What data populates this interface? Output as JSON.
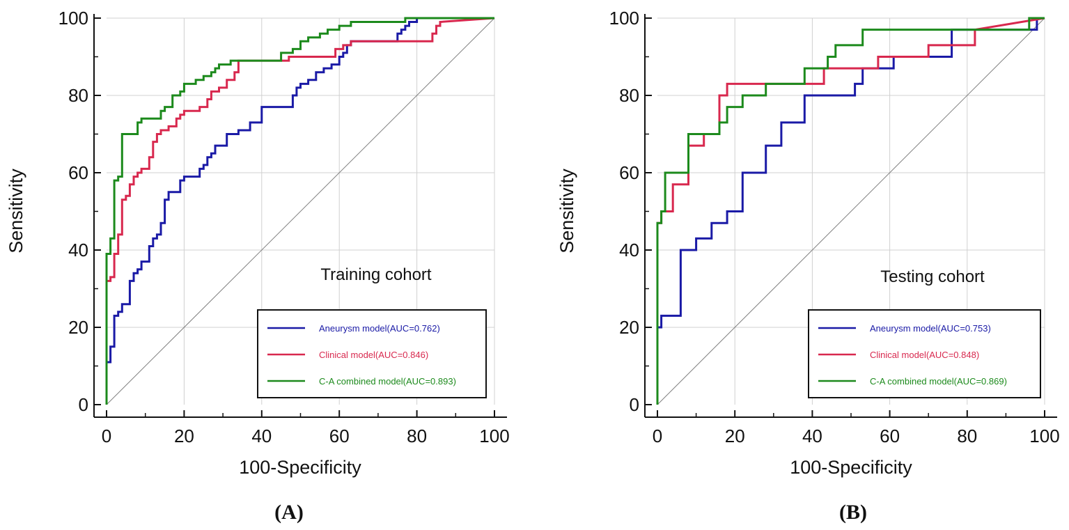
{
  "colors": {
    "aneurysm": "#1a1aa6",
    "clinical": "#d8284e",
    "combined": "#1c8a1c",
    "diagonal": "#808080",
    "grid": "#d0d0d0",
    "axis": "#111111"
  },
  "chart_data": [
    {
      "type": "line",
      "panel_label": "(A)",
      "title": "Training cohort",
      "xlabel": "100-Specificity",
      "ylabel": "Sensitivity",
      "xlim": [
        0,
        100
      ],
      "ylim": [
        0,
        100
      ],
      "xticks": [
        0,
        20,
        40,
        60,
        80,
        100
      ],
      "yticks": [
        0,
        20,
        40,
        60,
        80,
        100
      ],
      "grid": true,
      "legend_position": "bottom-right",
      "series": [
        {
          "name": "Aneurysm model(AUC=0.762)",
          "color_key": "aneurysm",
          "x": [
            0,
            0,
            1,
            1,
            2,
            2,
            3,
            3,
            4,
            4,
            6,
            6,
            7,
            7,
            8,
            8,
            9,
            9,
            11,
            11,
            12,
            12,
            13,
            13,
            14,
            14,
            15,
            15,
            16,
            16,
            17,
            17,
            19,
            19,
            20,
            20,
            21,
            21,
            24,
            24,
            25,
            25,
            26,
            26,
            27,
            27,
            28,
            28,
            29,
            29,
            31,
            31,
            34,
            34,
            37,
            37,
            40,
            40,
            42,
            42,
            48,
            48,
            49,
            49,
            50,
            50,
            52,
            52,
            54,
            54,
            56,
            56,
            58,
            58,
            60,
            60,
            61,
            61,
            62,
            62,
            63,
            63,
            75,
            75,
            76,
            76,
            77,
            77,
            78,
            78,
            80,
            80,
            100
          ],
          "y": [
            0,
            11,
            11,
            15,
            15,
            23,
            23,
            24,
            24,
            26,
            26,
            32,
            32,
            34,
            34,
            35,
            35,
            37,
            37,
            41,
            41,
            43,
            43,
            44,
            44,
            47,
            47,
            53,
            53,
            55,
            55,
            55,
            55,
            58,
            58,
            59,
            59,
            59,
            59,
            61,
            61,
            62,
            62,
            64,
            64,
            65,
            65,
            67,
            67,
            67,
            67,
            70,
            70,
            71,
            71,
            73,
            73,
            77,
            77,
            77,
            77,
            80,
            80,
            82,
            82,
            83,
            83,
            84,
            84,
            86,
            86,
            87,
            87,
            88,
            88,
            90,
            90,
            91,
            91,
            93,
            93,
            94,
            94,
            96,
            96,
            97,
            97,
            98,
            98,
            99,
            99,
            100,
            100
          ]
        },
        {
          "name": "Clinical model(AUC=0.846)",
          "color_key": "clinical",
          "x": [
            0,
            0,
            1,
            1,
            2,
            2,
            3,
            3,
            4,
            4,
            5,
            5,
            6,
            6,
            7,
            7,
            8,
            8,
            9,
            9,
            11,
            11,
            12,
            12,
            13,
            13,
            14,
            14,
            16,
            16,
            18,
            18,
            19,
            19,
            20,
            20,
            24,
            24,
            26,
            26,
            27,
            27,
            29,
            29,
            31,
            31,
            33,
            33,
            34,
            34,
            47,
            47,
            59,
            59,
            61,
            61,
            63,
            63,
            67,
            67,
            84,
            84,
            85,
            85,
            86,
            86,
            100
          ],
          "y": [
            0,
            32,
            32,
            33,
            33,
            39,
            39,
            44,
            44,
            53,
            53,
            54,
            54,
            57,
            57,
            59,
            59,
            60,
            60,
            61,
            61,
            64,
            64,
            68,
            68,
            70,
            70,
            71,
            71,
            72,
            72,
            74,
            74,
            75,
            75,
            76,
            76,
            77,
            77,
            79,
            79,
            81,
            81,
            82,
            82,
            84,
            84,
            86,
            86,
            89,
            89,
            90,
            90,
            92,
            92,
            93,
            93,
            94,
            94,
            94,
            94,
            96,
            96,
            98,
            98,
            99,
            100
          ]
        },
        {
          "name": "C-A combined model(AUC=0.893)",
          "color_key": "combined",
          "x": [
            0,
            0,
            1,
            1,
            2,
            2,
            3,
            3,
            4,
            4,
            8,
            8,
            9,
            9,
            14,
            14,
            15,
            15,
            17,
            17,
            19,
            19,
            20,
            20,
            23,
            23,
            25,
            25,
            27,
            27,
            28,
            28,
            29,
            29,
            32,
            32,
            45,
            45,
            48,
            48,
            50,
            50,
            52,
            52,
            55,
            55,
            57,
            57,
            60,
            60,
            63,
            63,
            64,
            64,
            72,
            72,
            77,
            77,
            100
          ],
          "y": [
            0,
            39,
            39,
            43,
            43,
            58,
            58,
            59,
            59,
            70,
            70,
            73,
            73,
            74,
            74,
            76,
            76,
            77,
            77,
            80,
            80,
            81,
            81,
            83,
            83,
            84,
            84,
            85,
            85,
            86,
            86,
            87,
            87,
            88,
            88,
            89,
            89,
            91,
            91,
            92,
            92,
            94,
            94,
            95,
            95,
            96,
            96,
            97,
            97,
            98,
            98,
            99,
            99,
            99,
            99,
            99,
            99,
            100,
            100
          ]
        }
      ]
    },
    {
      "type": "line",
      "panel_label": "(B)",
      "title": "Testing cohort",
      "xlabel": "100-Specificity",
      "ylabel": "Sensitivity",
      "xlim": [
        0,
        100
      ],
      "ylim": [
        0,
        100
      ],
      "xticks": [
        0,
        20,
        40,
        60,
        80,
        100
      ],
      "yticks": [
        0,
        20,
        40,
        60,
        80,
        100
      ],
      "grid": true,
      "legend_position": "bottom-right",
      "series": [
        {
          "name": "Aneurysm model(AUC=0.753)",
          "color_key": "aneurysm",
          "x": [
            0,
            0,
            1,
            1,
            4,
            4,
            6,
            6,
            10,
            10,
            12,
            12,
            14,
            14,
            18,
            18,
            22,
            22,
            28,
            28,
            32,
            32,
            38,
            38,
            51,
            51,
            53,
            53,
            61,
            61,
            76,
            76,
            96,
            96,
            98,
            98,
            100
          ],
          "y": [
            0,
            20,
            20,
            23,
            23,
            23,
            23,
            40,
            40,
            43,
            43,
            43,
            43,
            47,
            47,
            50,
            50,
            60,
            60,
            67,
            67,
            73,
            73,
            80,
            80,
            83,
            83,
            87,
            87,
            90,
            90,
            97,
            97,
            97,
            97,
            100,
            100
          ]
        },
        {
          "name": "Clinical model(AUC=0.848)",
          "color_key": "clinical",
          "x": [
            0,
            0,
            1,
            1,
            4,
            4,
            6,
            6,
            8,
            8,
            10,
            10,
            12,
            12,
            16,
            16,
            18,
            18,
            38,
            38,
            43,
            43,
            52,
            52,
            57,
            57,
            70,
            70,
            82,
            82,
            100
          ],
          "y": [
            0,
            47,
            47,
            50,
            50,
            57,
            57,
            57,
            57,
            67,
            67,
            67,
            67,
            70,
            70,
            80,
            80,
            83,
            83,
            83,
            83,
            87,
            87,
            87,
            87,
            90,
            90,
            93,
            93,
            97,
            100
          ]
        },
        {
          "name": "C-A combined model(AUC=0.869)",
          "color_key": "combined",
          "x": [
            0,
            0,
            1,
            1,
            2,
            2,
            8,
            8,
            16,
            16,
            18,
            18,
            22,
            22,
            26,
            26,
            28,
            28,
            38,
            38,
            44,
            44,
            46,
            46,
            52,
            52,
            53,
            53,
            96,
            96,
            100
          ],
          "y": [
            0,
            47,
            47,
            50,
            50,
            60,
            60,
            70,
            70,
            73,
            73,
            77,
            77,
            80,
            80,
            80,
            80,
            83,
            83,
            87,
            87,
            90,
            90,
            93,
            93,
            93,
            93,
            97,
            97,
            100,
            100
          ]
        }
      ]
    }
  ]
}
